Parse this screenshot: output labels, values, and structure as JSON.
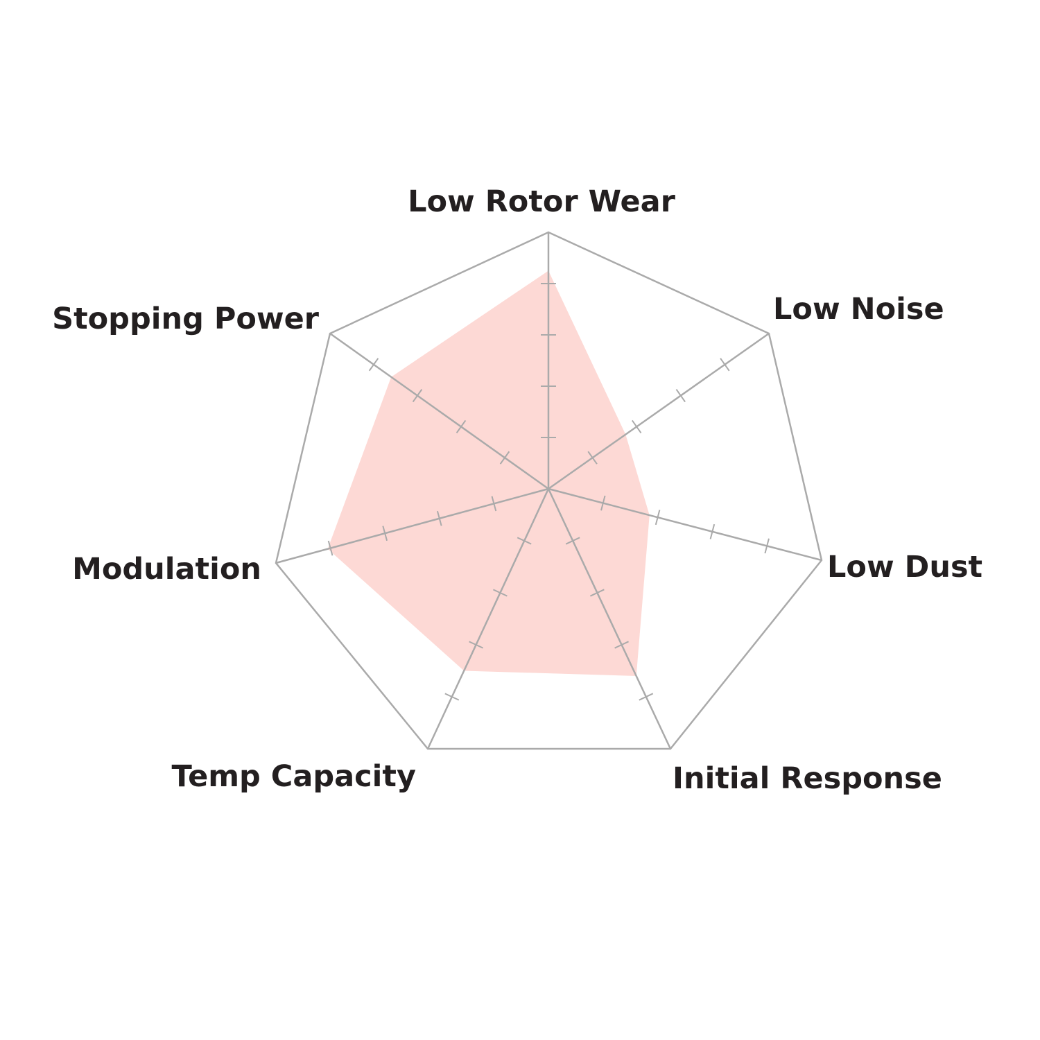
{
  "chart_data": {
    "type": "radar",
    "title": "",
    "axes": [
      "Low Rotor Wear",
      "Low Noise",
      "Low Dust",
      "Initial Response",
      "Temp Capacity",
      "Modulation",
      "Stopping Power"
    ],
    "values": [
      4.25,
      1.75,
      1.85,
      3.6,
      3.5,
      4.05,
      3.6
    ],
    "range": [
      0,
      5
    ],
    "ticks": [
      1,
      2,
      3,
      4
    ],
    "colors": {
      "fill": "#fdd9d5",
      "grid": "#aaaaaa",
      "label": "#231f20"
    }
  }
}
